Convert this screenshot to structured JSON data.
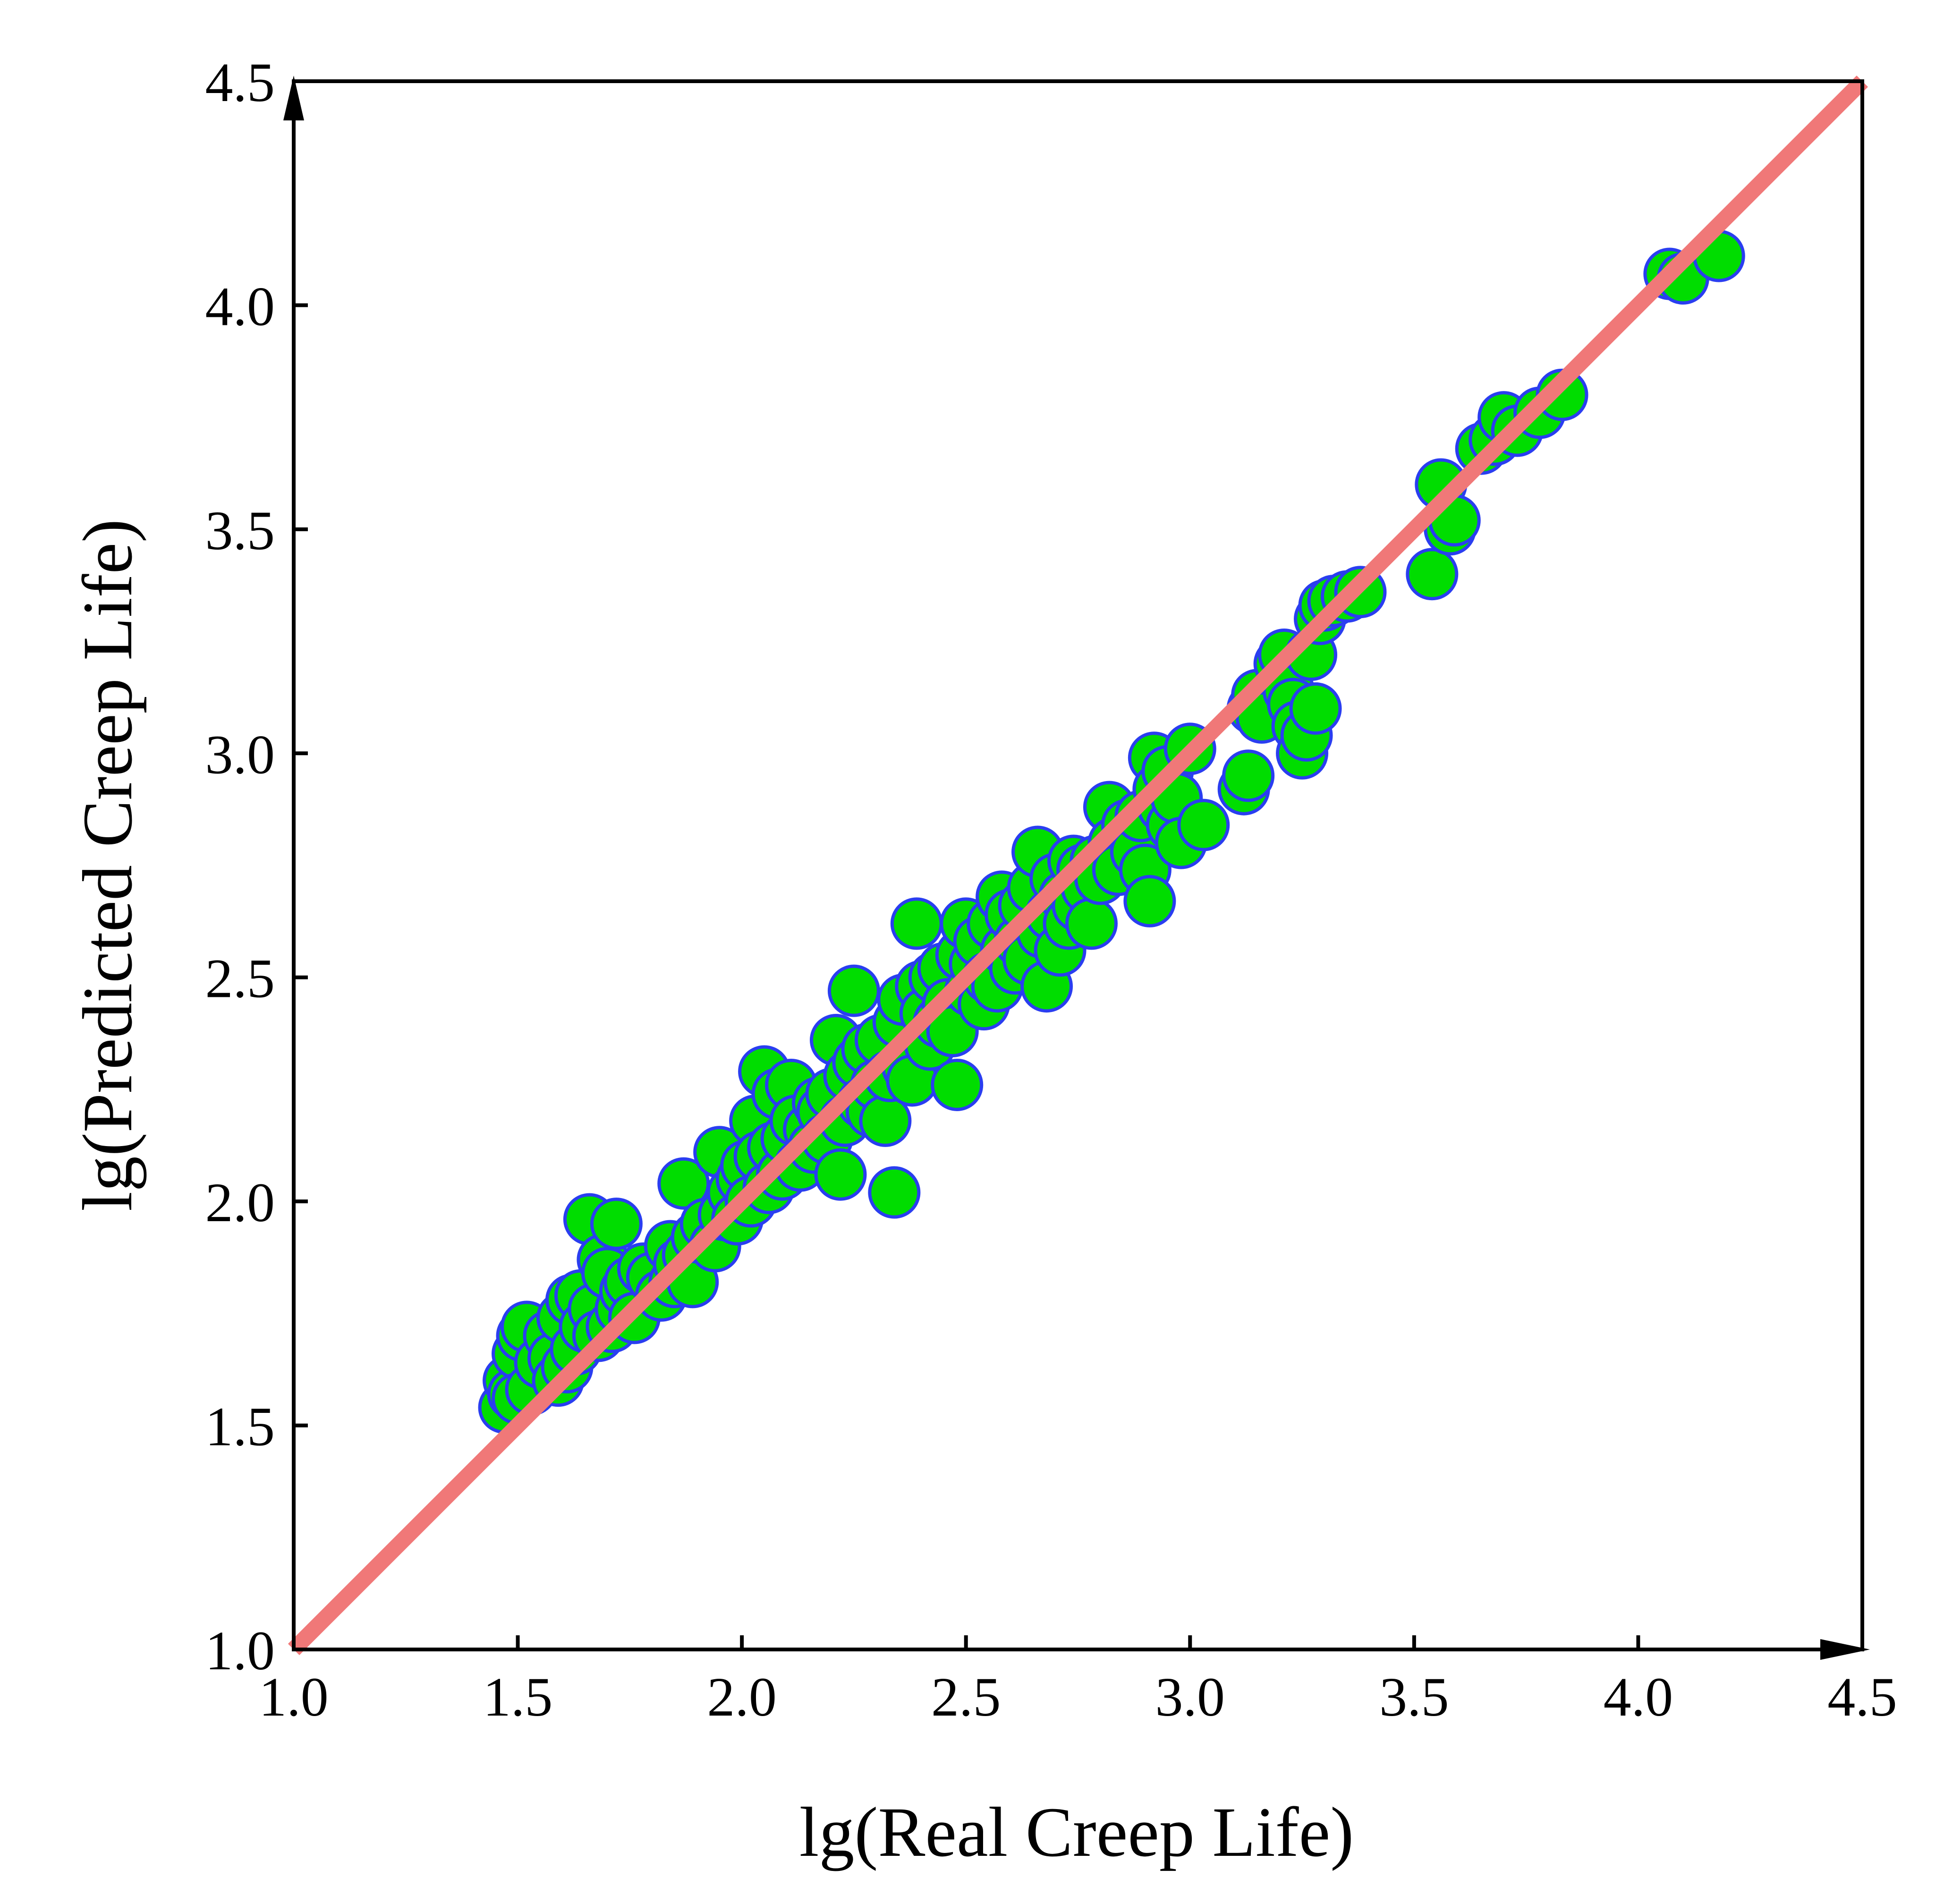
{
  "chart_data": {
    "type": "scatter",
    "xlabel": "lg(Real Creep Life)",
    "ylabel": "lg(Predicted Creep Life)",
    "xlim": [
      1.0,
      4.5
    ],
    "ylim": [
      1.0,
      4.5
    ],
    "x_ticks": [
      "1.0",
      "1.5",
      "2.0",
      "2.5",
      "3.0",
      "3.5",
      "4.0",
      "4.5"
    ],
    "y_ticks": [
      "1.0",
      "1.5",
      "2.0",
      "2.5",
      "3.0",
      "3.5",
      "4.0",
      "4.5"
    ],
    "grid": false,
    "legend": "none",
    "colors": {
      "point_fill": "#00dd00",
      "point_edge": "#2a3ef0",
      "reference_line": "#f07878"
    },
    "reference_line": {
      "x": [
        1.0,
        4.5
      ],
      "y": [
        1.0,
        4.5
      ]
    },
    "points": [
      [
        1.47,
        1.54
      ],
      [
        1.48,
        1.6
      ],
      [
        1.49,
        1.57
      ],
      [
        1.5,
        1.66
      ],
      [
        1.51,
        1.7
      ],
      [
        1.52,
        1.72
      ],
      [
        1.5,
        1.56
      ],
      [
        1.53,
        1.58
      ],
      [
        1.55,
        1.64
      ],
      [
        1.57,
        1.7
      ],
      [
        1.58,
        1.65
      ],
      [
        1.59,
        1.6
      ],
      [
        1.6,
        1.74
      ],
      [
        1.61,
        1.63
      ],
      [
        1.62,
        1.78
      ],
      [
        1.63,
        1.67
      ],
      [
        1.64,
        1.79
      ],
      [
        1.65,
        1.72
      ],
      [
        1.66,
        1.96
      ],
      [
        1.67,
        1.76
      ],
      [
        1.68,
        1.7
      ],
      [
        1.69,
        1.87
      ],
      [
        1.7,
        1.84
      ],
      [
        1.71,
        1.72
      ],
      [
        1.72,
        1.95
      ],
      [
        1.73,
        1.76
      ],
      [
        1.74,
        1.8
      ],
      [
        1.75,
        1.82
      ],
      [
        1.76,
        1.74
      ],
      [
        1.78,
        1.85
      ],
      [
        1.8,
        1.83
      ],
      [
        1.82,
        1.79
      ],
      [
        1.84,
        1.9
      ],
      [
        1.85,
        1.82
      ],
      [
        1.86,
        1.86
      ],
      [
        1.87,
        2.04
      ],
      [
        1.88,
        1.88
      ],
      [
        1.89,
        1.82
      ],
      [
        1.9,
        1.92
      ],
      [
        1.92,
        1.95
      ],
      [
        1.94,
        1.9
      ],
      [
        1.95,
        2.11
      ],
      [
        1.96,
        1.97
      ],
      [
        1.98,
        2.02
      ],
      [
        1.99,
        1.96
      ],
      [
        2.0,
        2.05
      ],
      [
        2.01,
        2.08
      ],
      [
        2.02,
        2.0
      ],
      [
        2.03,
        2.18
      ],
      [
        2.04,
        2.1
      ],
      [
        2.05,
        2.29
      ],
      [
        2.06,
        2.03
      ],
      [
        2.07,
        2.12
      ],
      [
        2.08,
        2.24
      ],
      [
        2.09,
        2.06
      ],
      [
        2.1,
        2.14
      ],
      [
        2.11,
        2.26
      ],
      [
        2.12,
        2.18
      ],
      [
        2.13,
        2.08
      ],
      [
        2.15,
        2.16
      ],
      [
        2.16,
        2.12
      ],
      [
        2.17,
        2.22
      ],
      [
        2.18,
        2.2
      ],
      [
        2.19,
        2.14
      ],
      [
        2.2,
        2.24
      ],
      [
        2.21,
        2.36
      ],
      [
        2.22,
        2.06
      ],
      [
        2.23,
        2.18
      ],
      [
        2.24,
        2.28
      ],
      [
        2.25,
        2.47
      ],
      [
        2.26,
        2.31
      ],
      [
        2.27,
        2.22
      ],
      [
        2.28,
        2.34
      ],
      [
        2.29,
        2.2
      ],
      [
        2.3,
        2.26
      ],
      [
        2.31,
        2.36
      ],
      [
        2.32,
        2.18
      ],
      [
        2.33,
        2.28
      ],
      [
        2.34,
        2.02
      ],
      [
        2.35,
        2.4
      ],
      [
        2.36,
        2.45
      ],
      [
        2.37,
        2.3
      ],
      [
        2.38,
        2.27
      ],
      [
        2.39,
        2.62
      ],
      [
        2.4,
        2.48
      ],
      [
        2.41,
        2.42
      ],
      [
        2.42,
        2.35
      ],
      [
        2.43,
        2.5
      ],
      [
        2.44,
        2.4
      ],
      [
        2.45,
        2.52
      ],
      [
        2.46,
        2.44
      ],
      [
        2.47,
        2.38
      ],
      [
        2.48,
        2.26
      ],
      [
        2.49,
        2.55
      ],
      [
        2.5,
        2.62
      ],
      [
        2.51,
        2.47
      ],
      [
        2.52,
        2.53
      ],
      [
        2.53,
        2.58
      ],
      [
        2.54,
        2.44
      ],
      [
        2.55,
        2.5
      ],
      [
        2.56,
        2.62
      ],
      [
        2.57,
        2.48
      ],
      [
        2.58,
        2.68
      ],
      [
        2.59,
        2.56
      ],
      [
        2.6,
        2.64
      ],
      [
        2.61,
        2.52
      ],
      [
        2.62,
        2.58
      ],
      [
        2.63,
        2.66
      ],
      [
        2.64,
        2.54
      ],
      [
        2.65,
        2.7
      ],
      [
        2.66,
        2.78
      ],
      [
        2.67,
        2.6
      ],
      [
        2.68,
        2.48
      ],
      [
        2.69,
        2.64
      ],
      [
        2.7,
        2.72
      ],
      [
        2.71,
        2.56
      ],
      [
        2.72,
        2.68
      ],
      [
        2.73,
        2.62
      ],
      [
        2.74,
        2.76
      ],
      [
        2.75,
        2.66
      ],
      [
        2.76,
        2.74
      ],
      [
        2.77,
        2.7
      ],
      [
        2.78,
        2.62
      ],
      [
        2.79,
        2.76
      ],
      [
        2.8,
        2.72
      ],
      [
        2.82,
        2.88
      ],
      [
        2.83,
        2.8
      ],
      [
        2.84,
        2.74
      ],
      [
        2.86,
        2.84
      ],
      [
        2.88,
        2.78
      ],
      [
        2.89,
        2.86
      ],
      [
        2.9,
        2.74
      ],
      [
        2.91,
        2.67
      ],
      [
        2.92,
        2.99
      ],
      [
        2.93,
        2.92
      ],
      [
        2.94,
        2.88
      ],
      [
        2.95,
        2.96
      ],
      [
        2.96,
        2.84
      ],
      [
        2.97,
        2.9
      ],
      [
        2.98,
        2.8
      ],
      [
        3.0,
        3.01
      ],
      [
        3.03,
        2.84
      ],
      [
        3.12,
        2.92
      ],
      [
        3.13,
        2.95
      ],
      [
        3.14,
        3.1
      ],
      [
        3.15,
        3.13
      ],
      [
        3.16,
        3.08
      ],
      [
        3.2,
        3.2
      ],
      [
        3.21,
        3.22
      ],
      [
        3.22,
        3.14
      ],
      [
        3.23,
        3.11
      ],
      [
        3.24,
        3.06
      ],
      [
        3.25,
        3.0
      ],
      [
        3.26,
        3.04
      ],
      [
        3.27,
        3.22
      ],
      [
        3.28,
        3.1
      ],
      [
        3.29,
        3.3
      ],
      [
        3.3,
        3.33
      ],
      [
        3.32,
        3.34
      ],
      [
        3.35,
        3.35
      ],
      [
        3.38,
        3.36
      ],
      [
        3.54,
        3.4
      ],
      [
        3.56,
        3.6
      ],
      [
        3.58,
        3.5
      ],
      [
        3.59,
        3.52
      ],
      [
        3.65,
        3.68
      ],
      [
        3.68,
        3.7
      ],
      [
        3.7,
        3.75
      ],
      [
        3.73,
        3.72
      ],
      [
        3.78,
        3.76
      ],
      [
        3.83,
        3.8
      ],
      [
        4.07,
        4.07
      ],
      [
        4.1,
        4.06
      ],
      [
        4.18,
        4.11
      ]
    ]
  }
}
